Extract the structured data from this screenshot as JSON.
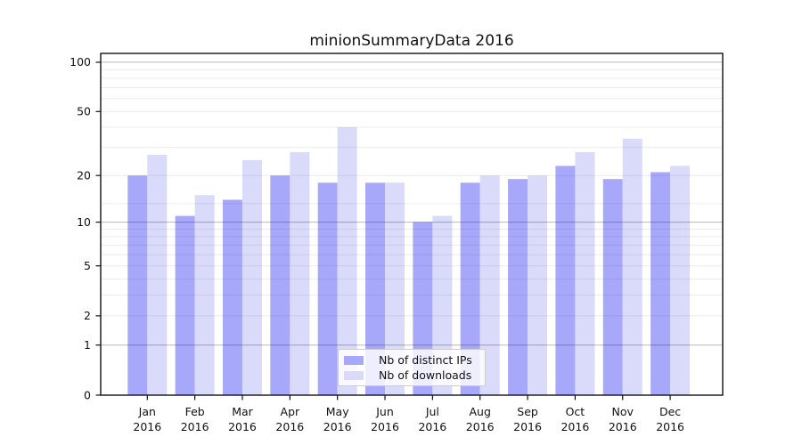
{
  "chart_data": {
    "type": "bar",
    "title": "minionSummaryData 2016",
    "categories": [
      "Jan",
      "Feb",
      "Mar",
      "Apr",
      "May",
      "Jun",
      "Jul",
      "Aug",
      "Sep",
      "Oct",
      "Nov",
      "Dec"
    ],
    "category_year": "2016",
    "series": [
      {
        "name": "Nb of distinct IPs",
        "color": "#a8a8fa",
        "values": [
          20,
          11,
          14,
          20,
          18,
          18,
          10,
          18,
          19,
          23,
          19,
          21
        ]
      },
      {
        "name": "Nb of downloads",
        "color": "#dadafa",
        "values": [
          27,
          15,
          25,
          28,
          40,
          18,
          11,
          20,
          20,
          28,
          34,
          23
        ]
      }
    ],
    "xlabel": "",
    "ylabel": "",
    "yscale": "log1p",
    "ylim": [
      0,
      113
    ],
    "ytick_labels": [
      "100",
      "50",
      "20",
      "10",
      "5",
      "2",
      "1",
      "0"
    ],
    "grid": "on",
    "legend_position": "lower center",
    "colors": {
      "axis": "#111111",
      "major_grid": "rgba(0,0,0,0.28)",
      "minor_grid": "rgba(0,0,0,0.075)",
      "text": "#111111",
      "legend_border": "#cccccc"
    }
  }
}
